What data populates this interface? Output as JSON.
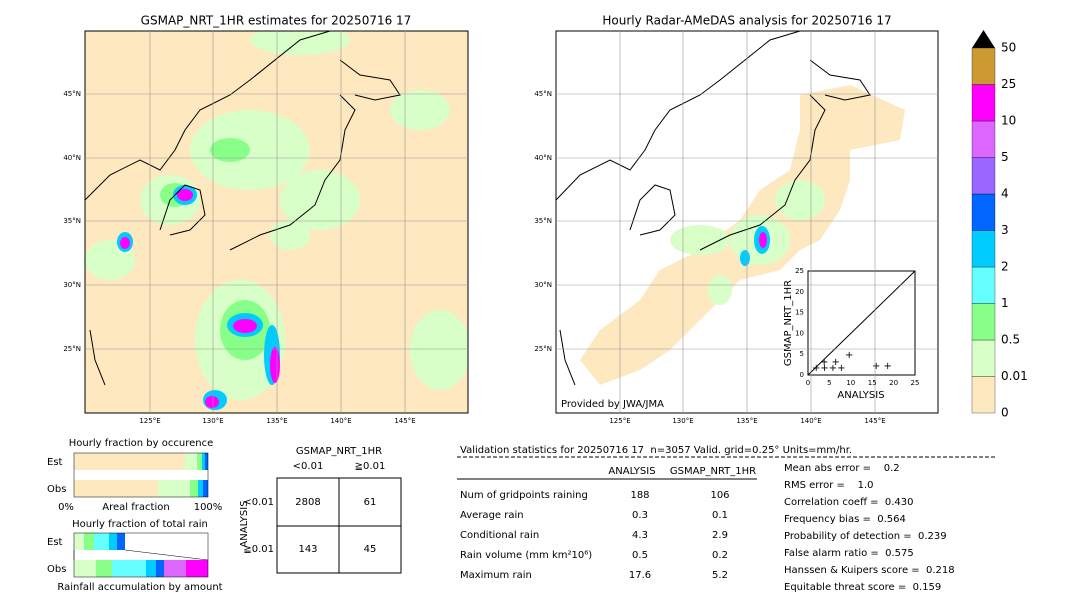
{
  "left_map": {
    "title": "GSMAP_NRT_1HR estimates for 20250716 17",
    "lat_labels": [
      "45°N",
      "40°N",
      "35°N",
      "30°N",
      "25°N"
    ],
    "lon_labels": [
      "125°E",
      "130°E",
      "135°E",
      "140°E",
      "145°E"
    ]
  },
  "right_map": {
    "title": "Hourly Radar-AMeDAS analysis for 20250716 17",
    "lat_labels": [
      "45°N",
      "40°N",
      "35°N",
      "30°N",
      "25°N"
    ],
    "lon_labels": [
      "125°E",
      "130°E",
      "135°E",
      "140°E",
      "145°E"
    ],
    "credit": "Provided by JWA/JMA",
    "inset": {
      "xlabel": "ANALYSIS",
      "ylabel": "GSMAP_NRT_1HR",
      "ticks": [
        "0",
        "5",
        "10",
        "15",
        "20",
        "25"
      ]
    }
  },
  "colorbar": {
    "labels": [
      "0",
      "0.01",
      "0.5",
      "1",
      "2",
      "3",
      "4",
      "5",
      "10",
      "25",
      "50"
    ],
    "colors": [
      "#fde8c0",
      "#d8ffc8",
      "#88ff88",
      "#66ffff",
      "#00ccff",
      "#0066ff",
      "#9966ff",
      "#dd66ff",
      "#ff00ff",
      "#cc9933"
    ]
  },
  "fraction_occurrence": {
    "title": "Hourly fraction by occurence",
    "rows": [
      "Est",
      "Obs"
    ],
    "axis_left": "0%",
    "axis_mid": "Areal fraction",
    "axis_right": "100%"
  },
  "fraction_total": {
    "title": "Hourly fraction of total rain",
    "rows": [
      "Est",
      "Obs"
    ],
    "footer": "Rainfall accumulation by amount"
  },
  "contingency": {
    "title": "GSMAP_NRT_1HR",
    "columns": [
      "<0.01",
      "≧0.01"
    ],
    "row_axis": "ANALYSIS",
    "rows": [
      "<0.01",
      "≧0.01"
    ],
    "cells": [
      [
        "2808",
        "61"
      ],
      [
        "143",
        "45"
      ]
    ]
  },
  "validation": {
    "header": "Validation statistics for 20250716 17  n=3057 Valid. grid=0.25° Units=mm/hr.",
    "columns": [
      "ANALYSIS",
      "GSMAP_NRT_1HR"
    ],
    "rows": [
      {
        "label": "Num of gridpoints raining",
        "values": [
          "188",
          "106"
        ]
      },
      {
        "label": "Average rain",
        "values": [
          "0.3",
          "0.1"
        ]
      },
      {
        "label": "Conditional rain",
        "values": [
          "4.3",
          "2.9"
        ]
      },
      {
        "label": "Rain volume (mm km²10⁶)",
        "values": [
          "0.5",
          "0.2"
        ]
      },
      {
        "label": "Maximum rain",
        "values": [
          "17.6",
          "5.2"
        ]
      }
    ],
    "scores": [
      "Mean abs error =    0.2",
      "RMS error =    1.0",
      "Correlation coeff =  0.430",
      "Frequency bias =  0.564",
      "Probability of detection =  0.239",
      "False alarm ratio =  0.575",
      "Hanssen & Kuipers score =  0.218",
      "Equitable threat score =  0.159"
    ]
  }
}
